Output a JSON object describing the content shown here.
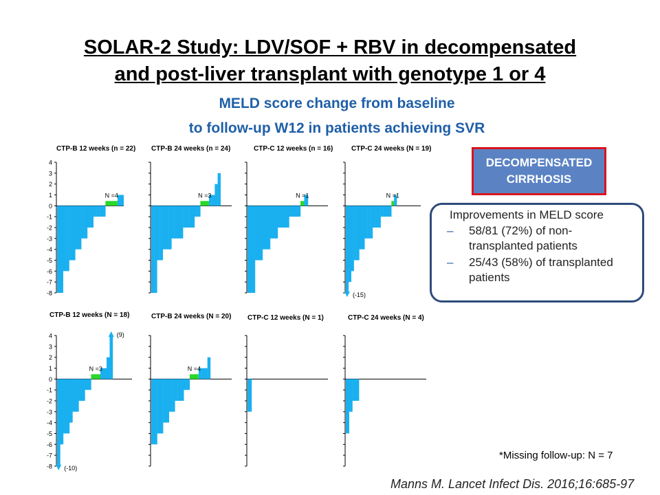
{
  "slide": {
    "title_line1": "SOLAR-2 Study: LDV/SOF + RBV in decompensated",
    "title_line2": "and post-liver transplant with genotype 1 or 4",
    "subtitle_line1": "MELD score change from baseline",
    "subtitle_line2": "to follow-up W12 in patients achieving SVR",
    "decomp_line1": "DECOMPENSATED",
    "decomp_line2": "CIRRHOSIS",
    "improvements": {
      "heading": "Improvements in MELD score",
      "items": [
        {
          "dash": "–",
          "text": "58/81 (72%) of non-transplanted patients"
        },
        {
          "dash": "–",
          "text": "25/43 (58%) of transplanted patients"
        }
      ]
    },
    "missing_note": "*Missing follow-up: N = 7",
    "citation": "Manns M. Lancet Infect Dis. 2016;16:685-97"
  },
  "colors": {
    "bar": "#1ab0f0",
    "zero_bar": "#2ad82a",
    "axis": "#000000",
    "title_blue": "#1f5fa8"
  },
  "chart_data": [
    {
      "type": "bar",
      "label": "CTP-B 12 weeks (n = 22)",
      "ylim": [
        -8,
        4
      ],
      "yticks": [
        "4",
        "3",
        "2",
        "1",
        "0",
        "-1",
        "-2",
        "-3",
        "-4",
        "-5",
        "-6",
        "-7",
        "-8"
      ],
      "values": [
        -8,
        -8,
        -6,
        -6,
        -5,
        -5,
        -4,
        -4,
        -3,
        -3,
        -2,
        -2,
        -1,
        -1,
        -1,
        -1,
        0,
        0,
        0,
        0,
        1,
        1
      ],
      "annotation": "N =4",
      "outlier": null
    },
    {
      "type": "bar",
      "label": "CTP-B 24 weeks (n = 24)",
      "ylim": [
        -8,
        4
      ],
      "yticks": [],
      "values": [
        -8,
        -8,
        -5,
        -5,
        -4,
        -4,
        -4,
        -3,
        -3,
        -3,
        -3,
        -2,
        -2,
        -2,
        -2,
        -1,
        -1,
        0,
        0,
        0,
        1,
        1,
        2,
        3
      ],
      "annotation": "N =3",
      "outlier": null
    },
    {
      "type": "bar",
      "label": "CTP-C 12 weeks (n = 16)",
      "ylim": [
        -8,
        4
      ],
      "yticks": [],
      "values": [
        -8,
        -8,
        -5,
        -5,
        -4,
        -4,
        -3,
        -3,
        -2,
        -2,
        -2,
        -1,
        -1,
        -1,
        0,
        1
      ],
      "annotation": "N =1",
      "outlier": null
    },
    {
      "type": "bar",
      "label": "CTP-C 24 weeks (N = 19)",
      "ylim": [
        -8,
        4
      ],
      "yticks": [],
      "values": [
        -8,
        -7,
        -6,
        -5,
        -5,
        -4,
        -4,
        -3,
        -3,
        -3,
        -2,
        -2,
        -2,
        -1,
        -1,
        -1,
        -1,
        0,
        1
      ],
      "annotation": "N =1",
      "outlier": "(-15)"
    },
    {
      "type": "bar",
      "label": "CTP-B 12 weeks (N = 18)",
      "ylim": [
        -8,
        4
      ],
      "yticks": [
        "4",
        "3",
        "2",
        "1",
        "0",
        "-1",
        "-2",
        "-3",
        "-4",
        "-5",
        "-6",
        "-7",
        "-8"
      ],
      "values": [
        -8,
        -6,
        -5,
        -5,
        -4,
        -3,
        -3,
        -2,
        -2,
        -1,
        -1,
        0,
        0,
        0,
        1,
        1,
        2,
        4
      ],
      "annotation": "N =3",
      "outlier": "(-10)",
      "outlier_top": "(9)"
    },
    {
      "type": "bar",
      "label": "CTP-B 24 weeks (N = 20)",
      "ylim": [
        -8,
        4
      ],
      "yticks": [],
      "values": [
        -6,
        -6,
        -5,
        -5,
        -4,
        -4,
        -3,
        -3,
        -2,
        -2,
        -2,
        -1,
        -1,
        0,
        0,
        0,
        1,
        1,
        1,
        2
      ],
      "annotation": "N =4",
      "outlier": null
    },
    {
      "type": "bar",
      "label": "CTP-C 12 weeks (N = 1)",
      "ylim": [
        -8,
        4
      ],
      "yticks": [],
      "values": [
        -3
      ],
      "annotation": "",
      "outlier": null
    },
    {
      "type": "bar",
      "label": "CTP-C 24 weeks (N = 4)",
      "ylim": [
        -8,
        4
      ],
      "yticks": [],
      "values": [
        -5,
        -3,
        -2,
        -2
      ],
      "annotation": "",
      "outlier": null
    }
  ]
}
